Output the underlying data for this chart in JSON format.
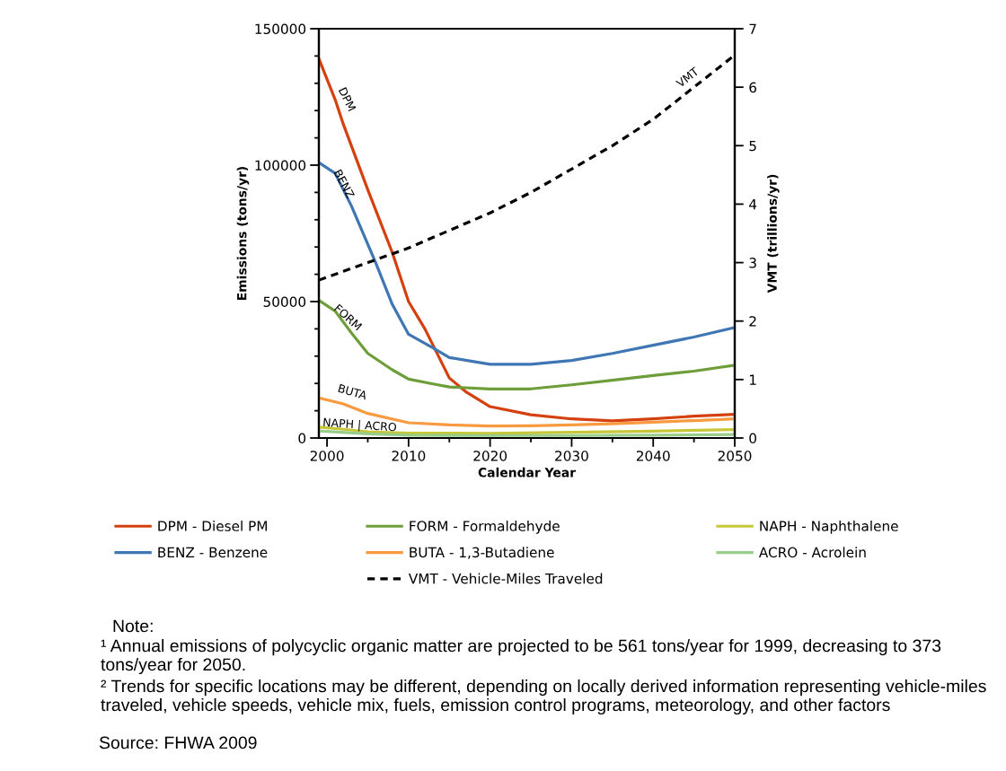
{
  "chart_data": {
    "type": "line",
    "line_style": "solid",
    "xlabel": "Calendar Year",
    "ylabel": "Emissions (tons/yr)",
    "y2label": "VMT (trillions/yr)",
    "xlim": [
      1999,
      2050
    ],
    "xticks": [
      2000,
      {
        "value": 2005,
        "label": null
      },
      2010,
      {
        "value": 2015,
        "label": null
      },
      2020,
      {
        "value": 2025,
        "label": null
      },
      2030,
      {
        "value": 2035,
        "label": null
      },
      2040,
      {
        "value": 2045,
        "label": null
      },
      2050
    ],
    "ylim": [
      0,
      150000
    ],
    "yticks": [
      0,
      {
        "value": 10000,
        "label": null
      },
      {
        "value": 20000,
        "label": null
      },
      {
        "value": 30000,
        "label": null
      },
      {
        "value": 40000,
        "label": null
      },
      50000,
      {
        "value": 60000,
        "label": null
      },
      {
        "value": 70000,
        "label": null
      },
      {
        "value": 80000,
        "label": null
      },
      {
        "value": 90000,
        "label": null
      },
      100000,
      {
        "value": 110000,
        "label": null
      },
      {
        "value": 120000,
        "label": null
      },
      {
        "value": 130000,
        "label": null
      },
      {
        "value": 140000,
        "label": null
      },
      150000
    ],
    "y2lim": [
      0,
      7
    ],
    "y2ticks": [
      0,
      1,
      2,
      3,
      4,
      5,
      6,
      7
    ],
    "legend": "bottom",
    "series": [
      {
        "name": "DPM - Diesel PM",
        "color": "#d4400e",
        "x": [
          1999,
          2001,
          2002,
          2005,
          2008,
          2010,
          2012,
          2015,
          2017,
          2020,
          2025,
          2030,
          2035,
          2040,
          2045,
          2050
        ],
        "values": [
          139000,
          124000,
          115000,
          91000,
          68000,
          50000,
          40000,
          22000,
          17000,
          11500,
          8500,
          7000,
          6300,
          7000,
          8000,
          8700
        ]
      },
      {
        "name": "BENZ - Benzene",
        "color": "#3f76b4",
        "x": [
          1999,
          2001,
          2003,
          2006,
          2008,
          2010,
          2013,
          2015,
          2020,
          2025,
          2030,
          2035,
          2040,
          2045,
          2050
        ],
        "values": [
          101000,
          97000,
          85000,
          64000,
          49000,
          38000,
          33000,
          29500,
          27000,
          27000,
          28400,
          31000,
          34000,
          37000,
          40500
        ]
      },
      {
        "name": "FORM - Formaldehyde",
        "color": "#6d9e3a",
        "x": [
          1999,
          2001,
          2003,
          2005,
          2008,
          2010,
          2013,
          2015,
          2020,
          2025,
          2030,
          2035,
          2040,
          2045,
          2050
        ],
        "values": [
          50500,
          46500,
          38500,
          31000,
          25000,
          21600,
          19800,
          18700,
          18000,
          18000,
          19500,
          21200,
          22900,
          24500,
          26700
        ]
      },
      {
        "name": "BUTA - 1,3-Butadiene",
        "color": "#f79a40",
        "x": [
          1999,
          2002,
          2005,
          2010,
          2015,
          2020,
          2025,
          2030,
          2035,
          2040,
          2045,
          2050
        ],
        "values": [
          14700,
          12500,
          9000,
          5600,
          4800,
          4400,
          4500,
          4800,
          5200,
          5800,
          6400,
          7000
        ]
      },
      {
        "name": "VMT - Vehicle-Miles Traveled",
        "color": "#000000",
        "axis": "y2",
        "line_style": "dashed",
        "x": [
          1999,
          2002,
          2005,
          2010,
          2015,
          2020,
          2025,
          2030,
          2035,
          2040,
          2045,
          2050
        ],
        "values": [
          2.7,
          2.85,
          3.0,
          3.25,
          3.55,
          3.85,
          4.2,
          4.6,
          5.0,
          5.45,
          6.0,
          6.55
        ]
      },
      {
        "name": "NAPH - Naphthalene",
        "color": "#c6c83a",
        "x": [
          1999,
          2002,
          2005,
          2010,
          2020,
          2030,
          2040,
          2050
        ],
        "values": [
          4000,
          3200,
          2300,
          1800,
          1700,
          2100,
          2500,
          3100
        ]
      },
      {
        "name": "ACRO - Acrolein",
        "color": "#98cc8a",
        "x": [
          1999,
          2005,
          2010,
          2020,
          2030,
          2040,
          2050
        ],
        "values": [
          2600,
          1500,
          1000,
          900,
          900,
          1000,
          1300
        ]
      }
    ],
    "annotations": [
      {
        "text": "DPM",
        "x": 2001,
        "y": 124000
      },
      {
        "text": "BENZ",
        "x": 2002,
        "y": 93000
      },
      {
        "text": "FORM",
        "x": 2002.5,
        "y": 44000
      },
      {
        "text": "BUTA",
        "x": 2002,
        "y": 12500
      },
      {
        "text": "NAPH | ACRO",
        "x": 2004,
        "y": 4500
      },
      "VMT",
      "Note:",
      "¹ Annual emissions of polycyclic organic matter are projected to be 561 tons/year for 1999, decreasing to 373 tons/year for 2050.",
      "² Trends for specific locations may be different, depending on locally derived information representing vehicle-miles traveled, vehicle speeds, vehicle mix, fuels, emission control programs, meteorology, and other factors",
      "Source: FHWA 2009"
    ]
  }
}
